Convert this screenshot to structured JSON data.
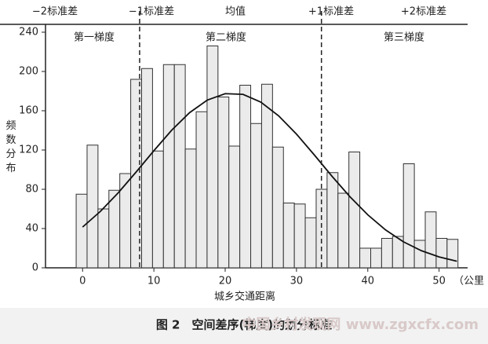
{
  "chart_data": {
    "type": "histogram",
    "top_labels": [
      "−2标准差",
      "−1标准差",
      "均值",
      "+1标准差",
      "+2标准差"
    ],
    "zone_labels": [
      "第一梯度",
      "第二梯度",
      "第三梯度"
    ],
    "ylabel": "频数分布",
    "xlabel": "城乡交通距离",
    "x_unit": "（公里",
    "caption": "图 2　空间差序(梯度)的划分标准",
    "watermark": "中国乡村发现网 www.zgxcfx.com",
    "bins": [
      -0.9,
      0.63,
      2.16,
      3.69,
      5.22,
      6.75,
      8.28,
      9.81,
      11.34,
      12.87,
      14.4,
      15.93,
      17.46,
      18.99,
      20.52,
      22.05,
      23.58,
      25.11,
      26.64,
      28.17,
      29.7,
      31.23,
      32.76,
      34.29,
      35.82,
      37.35,
      38.88,
      40.41,
      41.94,
      43.47,
      45.0,
      46.53,
      48.06,
      49.59,
      51.12,
      52.65
    ],
    "values": [
      75,
      125,
      60,
      79,
      96,
      192,
      203,
      119,
      207,
      207,
      121,
      159,
      226,
      174,
      124,
      186,
      147,
      187,
      123,
      66,
      65,
      51,
      80,
      97,
      76,
      118,
      20,
      20,
      30,
      32,
      106,
      28,
      57,
      30,
      29
    ],
    "color": "#ebebeb",
    "curve": {
      "x": [
        0,
        2.5,
        5,
        7.5,
        10,
        12.5,
        15,
        17.5,
        20,
        22.5,
        25,
        27.5,
        30,
        32.5,
        35,
        37.5,
        40,
        42.5,
        45,
        47.5,
        50,
        52.5
      ],
      "values": [
        41.5,
        57.5,
        76.4,
        97.5,
        119.3,
        140.2,
        158.0,
        170.9,
        177.4,
        176.7,
        168.8,
        154.8,
        136.2,
        115.0,
        93.1,
        72.4,
        54.0,
        38.6,
        26.5,
        17.5,
        11.1,
        6.7
      ]
    },
    "sd_lines": [
      8,
      33.5
    ],
    "xlim": [
      -5.2,
      54
    ],
    "ylim": [
      0,
      248
    ],
    "xticks": [
      0,
      10,
      20,
      30,
      40,
      50
    ],
    "yticks": [
      0,
      40,
      80,
      120,
      160,
      200,
      240
    ]
  }
}
